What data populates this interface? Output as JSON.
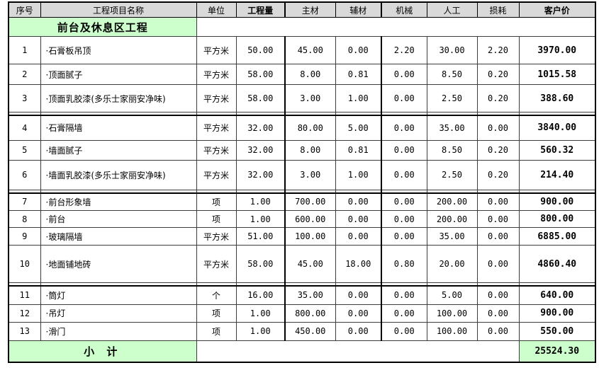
{
  "table": {
    "columns": [
      "序号",
      "工程项目名称",
      "单位",
      "工程量",
      "主材",
      "辅材",
      "机械",
      "人工",
      "损耗",
      "客户价"
    ],
    "section_title": "前台及休息区工程",
    "rows": [
      {
        "no": "1",
        "name": "·石膏板吊顶",
        "unit": "平方米",
        "qty": "50.00",
        "main": "45.00",
        "aux": "0.00",
        "mach": "2.20",
        "labor": "30.00",
        "loss": "2.20",
        "price": "3970.00"
      },
      {
        "no": "2",
        "name": "·顶面腻子",
        "unit": "平方米",
        "qty": "58.00",
        "main": "8.00",
        "aux": "0.81",
        "mach": "0.00",
        "labor": "8.50",
        "loss": "0.20",
        "price": "1015.58"
      },
      {
        "no": "3",
        "name": "·顶面乳胶漆(多乐士家丽安净味)",
        "unit": "平方米",
        "qty": "58.00",
        "main": "3.00",
        "aux": "1.00",
        "mach": "0.00",
        "labor": "2.50",
        "loss": "0.20",
        "price": "388.60"
      },
      {
        "no": "4",
        "name": "·石膏隔墙",
        "unit": "平方米",
        "qty": "32.00",
        "main": "80.00",
        "aux": "5.00",
        "mach": "0.00",
        "labor": "35.00",
        "loss": "0.00",
        "price": "3840.00"
      },
      {
        "no": "5",
        "name": "·墙面腻子",
        "unit": "平方米",
        "qty": "32.00",
        "main": "8.00",
        "aux": "0.81",
        "mach": "0.00",
        "labor": "8.50",
        "loss": "0.20",
        "price": "560.32"
      },
      {
        "no": "6",
        "name": "·墙面乳胶漆(多乐士家丽安净味)",
        "unit": "平方米",
        "qty": "32.00",
        "main": "3.00",
        "aux": "1.00",
        "mach": "0.00",
        "labor": "2.50",
        "loss": "0.20",
        "price": "214.40"
      },
      {
        "no": "7",
        "name": "·前台形象墙",
        "unit": "项",
        "qty": "1.00",
        "main": "700.00",
        "aux": "0.00",
        "mach": "0.00",
        "labor": "200.00",
        "loss": "0.00",
        "price": "900.00"
      },
      {
        "no": "8",
        "name": "·前台",
        "unit": "项",
        "qty": "1.00",
        "main": "600.00",
        "aux": "0.00",
        "mach": "0.00",
        "labor": "200.00",
        "loss": "0.00",
        "price": "800.00"
      },
      {
        "no": "9",
        "name": "·玻璃隔墙",
        "unit": "平方米",
        "qty": "51.00",
        "main": "100.00",
        "aux": "0.00",
        "mach": "0.00",
        "labor": "35.00",
        "loss": "0.00",
        "price": "6885.00"
      },
      {
        "no": "10",
        "name": "·地面铺地砖",
        "unit": "平方米",
        "qty": "58.00",
        "main": "45.00",
        "aux": "18.00",
        "mach": "0.80",
        "labor": "20.00",
        "loss": "0.00",
        "price": "4860.40"
      },
      {
        "no": "11",
        "name": "·筒灯",
        "unit": "个",
        "qty": "16.00",
        "main": "35.00",
        "aux": "0.00",
        "mach": "0.00",
        "labor": "5.00",
        "loss": "0.00",
        "price": "640.00"
      },
      {
        "no": "12",
        "name": "·吊灯",
        "unit": "项",
        "qty": "1.00",
        "main": "800.00",
        "aux": "0.00",
        "mach": "0.00",
        "labor": "100.00",
        "loss": "0.00",
        "price": "900.00"
      },
      {
        "no": "13",
        "name": "·滑门",
        "unit": "项",
        "qty": "1.00",
        "main": "450.00",
        "aux": "0.00",
        "mach": "0.00",
        "labor": "100.00",
        "loss": "0.00",
        "price": "550.00"
      }
    ],
    "subtotal": {
      "label": "小  计",
      "value": "25524.30"
    }
  },
  "colors": {
    "header_bg": "#d9d9d9",
    "section_bg": "#ccffcc",
    "border": "#000000"
  }
}
